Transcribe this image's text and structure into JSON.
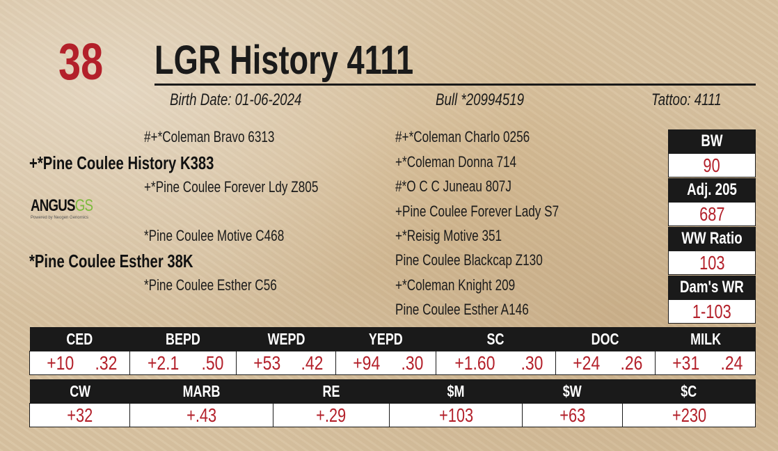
{
  "lot_number": "38",
  "animal_name": "LGR History 4111",
  "birth_date": "Birth Date: 01-06-2024",
  "registration": "Bull *20994519",
  "tattoo": "Tattoo: 4111",
  "pedigree": {
    "sire": "+*Pine Coulee History K383",
    "sire_sire": "#+*Coleman Bravo 6313",
    "sire_dam": "+*Pine Coulee Forever Ldy Z805",
    "dam": "*Pine Coulee Esther 38K",
    "dam_sire": "*Pine Coulee Motive C468",
    "dam_dam": "*Pine Coulee Esther C56",
    "ggp": [
      "#+*Coleman Charlo 0256",
      "+*Coleman Donna 714",
      "#*O C C Juneau 807J",
      "+Pine Coulee Forever Lady S7",
      "+*Reisig Motive 351",
      "Pine Coulee Blackcap Z130",
      "+*Coleman Knight 209",
      "Pine Coulee Esther A146"
    ]
  },
  "logo": {
    "text_main": "ANGUS",
    "text_accent": "GS",
    "tagline": "Powered by Neogen Genomics",
    "accent_color": "#7cba3d"
  },
  "performance": [
    {
      "label": "BW",
      "value": "90"
    },
    {
      "label": "Adj. 205",
      "value": "687"
    },
    {
      "label": "WW Ratio",
      "value": "103"
    },
    {
      "label": "Dam's WR",
      "value": "1-103"
    }
  ],
  "epd_row1": [
    {
      "label": "CED",
      "epd": "+10",
      "acc": ".32"
    },
    {
      "label": "BEPD",
      "epd": "+2.1",
      "acc": ".50"
    },
    {
      "label": "WEPD",
      "epd": "+53",
      "acc": ".42"
    },
    {
      "label": "YEPD",
      "epd": "+94",
      "acc": ".30"
    },
    {
      "label": "SC",
      "epd": "+1.60",
      "acc": ".30"
    },
    {
      "label": "DOC",
      "epd": "+24",
      "acc": ".26"
    },
    {
      "label": "MILK",
      "epd": "+31",
      "acc": ".24"
    }
  ],
  "epd_row2": [
    {
      "label": "CW",
      "value": "+32"
    },
    {
      "label": "MARB",
      "value": "+.43"
    },
    {
      "label": "RE",
      "value": "+.29"
    },
    {
      "label": "$M",
      "value": "+103"
    },
    {
      "label": "$W",
      "value": "+63"
    },
    {
      "label": "$C",
      "value": "+230"
    }
  ],
  "colors": {
    "accent_red": "#b3202a",
    "header_black": "#1a1a1a"
  }
}
